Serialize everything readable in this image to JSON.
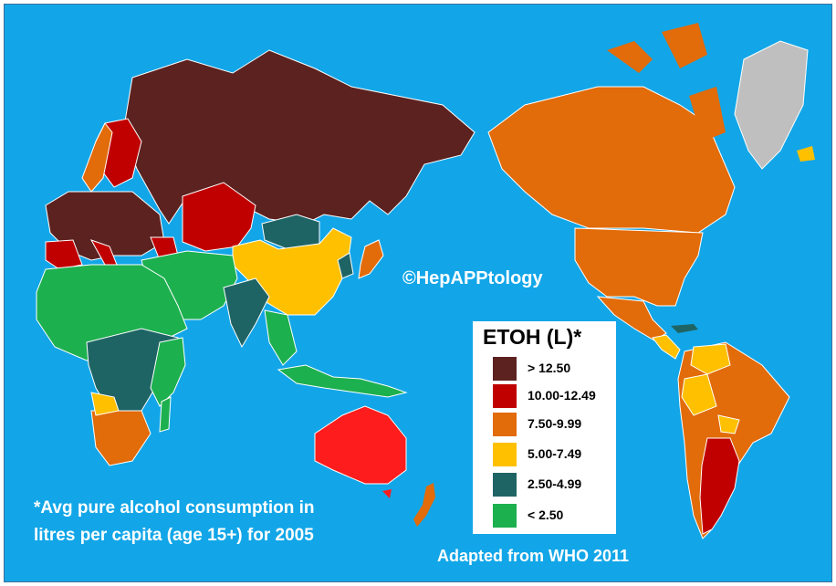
{
  "watermark": "©HepAPPtology",
  "footnote": {
    "line1": "*Avg pure alcohol consumption in",
    "line2": "litres per capita (age 15+) for 2005"
  },
  "source": "Adapted from WHO 2011",
  "legend": {
    "title": "ETOH (L)*",
    "items": [
      {
        "label": "> 12.50",
        "color": "#5c2220"
      },
      {
        "label": "10.00-12.49",
        "color": "#c00000"
      },
      {
        "label": "7.50-9.99",
        "color": "#e26b0a"
      },
      {
        "label": "5.00-7.49",
        "color": "#ffc000"
      },
      {
        "label": "2.50-4.99",
        "color": "#1f6465"
      },
      {
        "label": "< 2.50",
        "color": "#1db04f"
      }
    ]
  },
  "colors": {
    "ocean": "#12a6e8",
    "no_data": "#bfbfbf",
    "text": "#ffffff"
  }
}
